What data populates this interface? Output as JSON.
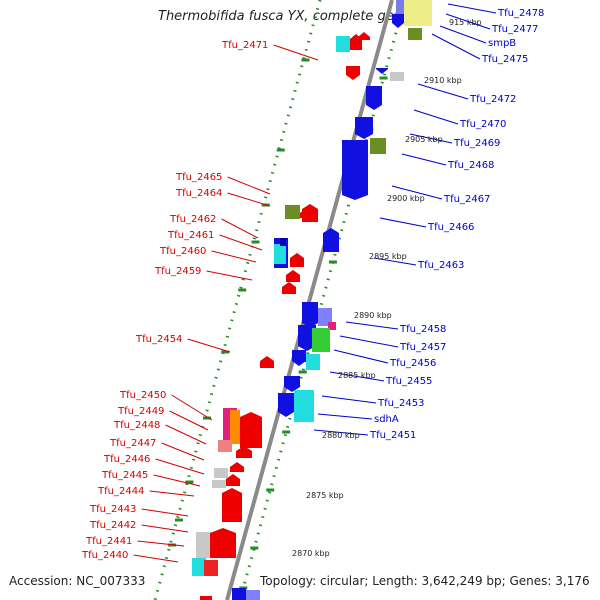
{
  "title": "Thermobifida fusca YX, complete genome",
  "footer": {
    "accession": "Accession: NC_007333",
    "topology": "Topology: circular; Length: 3,642,249 bp; Genes: 3,176"
  },
  "colors": {
    "left_label": "#d40000",
    "right_label": "#0000cc",
    "backbone": "#8a8a8a",
    "dots": "#2a8a2a"
  },
  "left_labels": [
    "Tfu_2471",
    "Tfu_2465",
    "Tfu_2464",
    "Tfu_2462",
    "Tfu_2461",
    "Tfu_2460",
    "Tfu_2459",
    "Tfu_2454",
    "Tfu_2450",
    "Tfu_2449",
    "Tfu_2448",
    "Tfu_2447",
    "Tfu_2446",
    "Tfu_2445",
    "Tfu_2444",
    "Tfu_2443",
    "Tfu_2442",
    "Tfu_2441",
    "Tfu_2440"
  ],
  "right_labels": [
    "Tfu_2478",
    "Tfu_2477",
    "smpB",
    "Tfu_2475",
    "Tfu_2472",
    "Tfu_2470",
    "Tfu_2469",
    "Tfu_2468",
    "Tfu_2467",
    "Tfu_2466",
    "Tfu_2463",
    "Tfu_2458",
    "Tfu_2457",
    "Tfu_2456",
    "Tfu_2455",
    "Tfu_2453",
    "sdhA",
    "Tfu_2451"
  ],
  "kbp_labels": [
    "915 kbp",
    "2910 kbp",
    "2905 kbp",
    "2900 kbp",
    "2895 kbp",
    "2890 kbp",
    "2885 kbp",
    "2880 kbp",
    "2875 kbp",
    "2870 kbp"
  ]
}
